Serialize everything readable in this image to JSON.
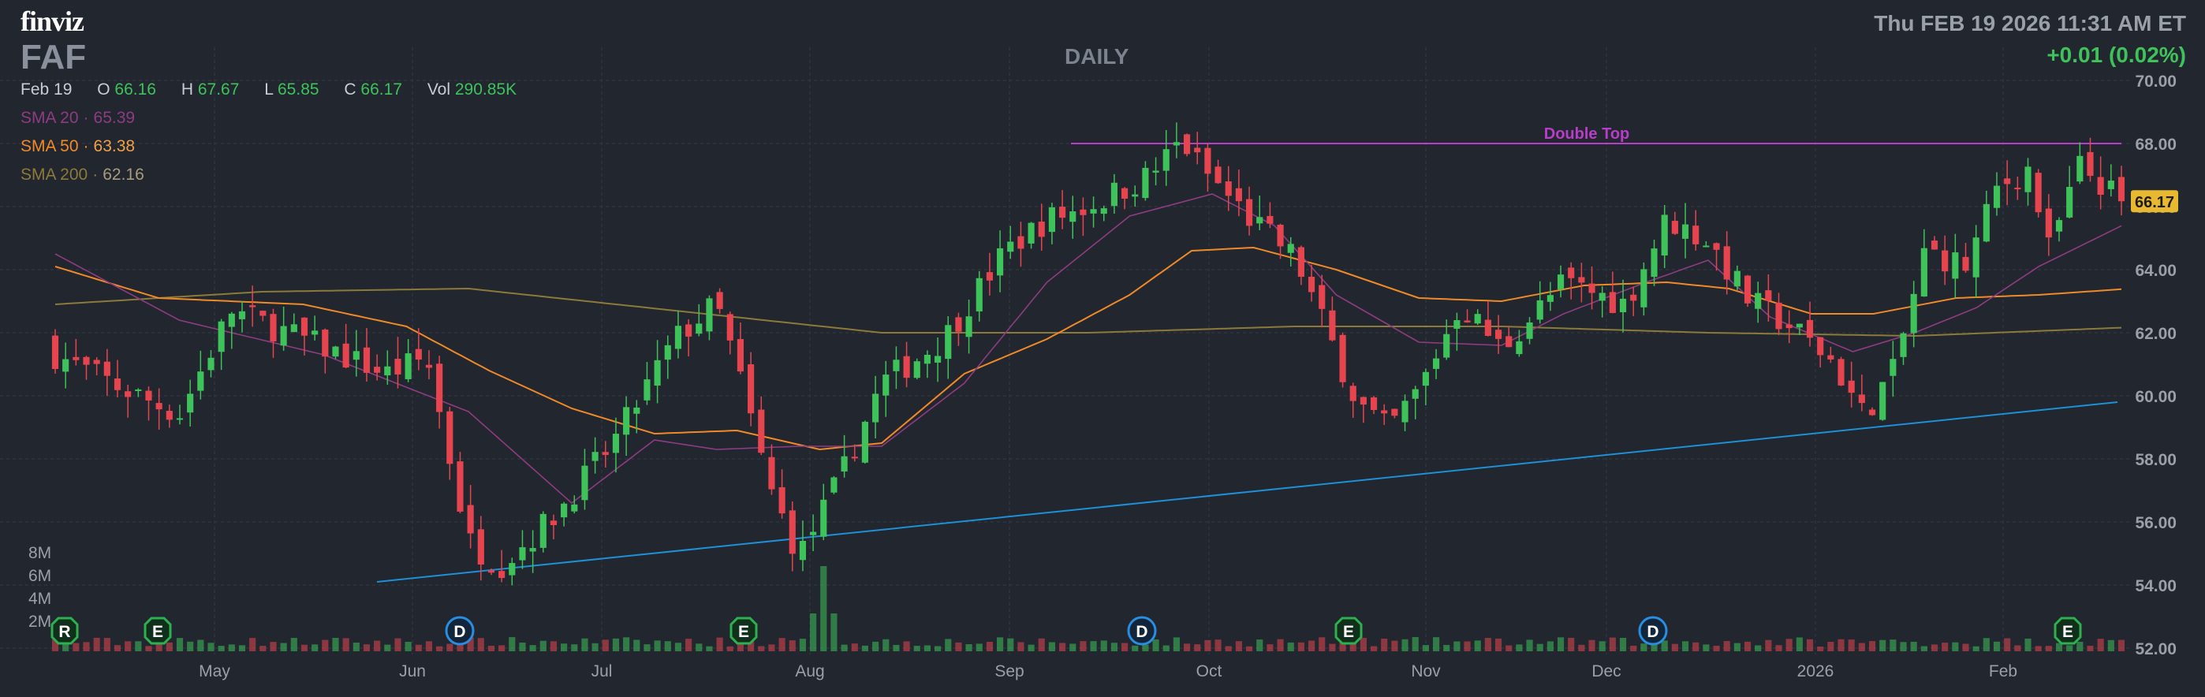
{
  "header": {
    "logo": "finviz",
    "ticker": "FAF",
    "period": "DAILY",
    "datetime": "Thu FEB 19 2026 11:31 AM ET",
    "change": "+0.01 (0.02%)"
  },
  "ohlc": {
    "date": "Feb 19",
    "o_label": "O",
    "o": "66.16",
    "h_label": "H",
    "h": "67.67",
    "l_label": "L",
    "l": "65.85",
    "c_label": "C",
    "c": "66.17",
    "vol_label": "Vol",
    "vol": "290.85K"
  },
  "indicators": {
    "sma20_label": "SMA 20",
    "sma20": "65.39",
    "sma50_label": "SMA 50",
    "sma50": "63.38",
    "sma200_label": "SMA 200",
    "sma200": "62.16",
    "sep": "·"
  },
  "colors": {
    "background": "#22262f",
    "up": "#3ec25a",
    "down": "#e64550",
    "grid": "#343945",
    "sma20": "#8e3c82",
    "sma50": "#f08a28",
    "sma200": "#8c7a3a",
    "trendline": "#1e90d6",
    "double_top": "#b63ec8",
    "last_price_bg": "#e8b830"
  },
  "chart_data": {
    "type": "candlestick",
    "ylim": [
      52,
      70
    ],
    "y_ticks": [
      "70.00",
      "68.00",
      "66.00",
      "64.00",
      "62.00",
      "60.00",
      "58.00",
      "56.00",
      "54.00",
      "52.00"
    ],
    "x_tick_labels": [
      "May",
      "Jun",
      "Jul",
      "Aug",
      "Sep",
      "Oct",
      "Nov",
      "Dec",
      "2026",
      "Feb"
    ],
    "volume_axis_labels": [
      "8M",
      "6M",
      "4M",
      "2M"
    ],
    "last_price": "66.17",
    "annotations": {
      "double_top_label": "Double Top",
      "double_top_level": 68.0,
      "trendline": {
        "from": [
          54.1
        ],
        "to": [
          59.8
        ]
      }
    },
    "event_markers": [
      {
        "label": "R",
        "kind": "rating"
      },
      {
        "label": "E",
        "kind": "earnings"
      },
      {
        "label": "D",
        "kind": "dividend"
      },
      {
        "label": "E",
        "kind": "earnings"
      },
      {
        "label": "D",
        "kind": "dividend"
      },
      {
        "label": "E",
        "kind": "earnings"
      },
      {
        "label": "D",
        "kind": "dividend"
      },
      {
        "label": "E",
        "kind": "earnings"
      }
    ],
    "close_keyframes": [
      {
        "x": 0.0,
        "y": 61.3
      },
      {
        "x": 0.03,
        "y": 60.3
      },
      {
        "x": 0.06,
        "y": 59.4
      },
      {
        "x": 0.085,
        "y": 62.7
      },
      {
        "x": 0.12,
        "y": 61.8
      },
      {
        "x": 0.16,
        "y": 60.7
      },
      {
        "x": 0.18,
        "y": 61.2
      },
      {
        "x": 0.2,
        "y": 55.4
      },
      {
        "x": 0.215,
        "y": 54.6
      },
      {
        "x": 0.24,
        "y": 56.1
      },
      {
        "x": 0.27,
        "y": 58.5
      },
      {
        "x": 0.3,
        "y": 61.8
      },
      {
        "x": 0.32,
        "y": 62.9
      },
      {
        "x": 0.33,
        "y": 60.9
      },
      {
        "x": 0.345,
        "y": 57.2
      },
      {
        "x": 0.36,
        "y": 54.9
      },
      {
        "x": 0.38,
        "y": 57.4
      },
      {
        "x": 0.4,
        "y": 60.4
      },
      {
        "x": 0.43,
        "y": 61.8
      },
      {
        "x": 0.46,
        "y": 64.6
      },
      {
        "x": 0.48,
        "y": 65.6
      },
      {
        "x": 0.5,
        "y": 66.0
      },
      {
        "x": 0.53,
        "y": 67.0
      },
      {
        "x": 0.545,
        "y": 68.1
      },
      {
        "x": 0.555,
        "y": 67.2
      },
      {
        "x": 0.58,
        "y": 65.5
      },
      {
        "x": 0.6,
        "y": 64.4
      },
      {
        "x": 0.615,
        "y": 62.1
      },
      {
        "x": 0.63,
        "y": 59.8
      },
      {
        "x": 0.645,
        "y": 58.9
      },
      {
        "x": 0.66,
        "y": 60.2
      },
      {
        "x": 0.68,
        "y": 62.9
      },
      {
        "x": 0.7,
        "y": 61.5
      },
      {
        "x": 0.73,
        "y": 63.6
      },
      {
        "x": 0.76,
        "y": 62.9
      },
      {
        "x": 0.78,
        "y": 65.6
      },
      {
        "x": 0.8,
        "y": 64.9
      },
      {
        "x": 0.82,
        "y": 63.0
      },
      {
        "x": 0.84,
        "y": 62.2
      },
      {
        "x": 0.86,
        "y": 61.1
      },
      {
        "x": 0.875,
        "y": 59.4
      },
      {
        "x": 0.89,
        "y": 60.8
      },
      {
        "x": 0.905,
        "y": 64.6
      },
      {
        "x": 0.925,
        "y": 64.1
      },
      {
        "x": 0.94,
        "y": 66.6
      },
      {
        "x": 0.955,
        "y": 67.2
      },
      {
        "x": 0.965,
        "y": 64.6
      },
      {
        "x": 0.98,
        "y": 67.3
      },
      {
        "x": 1.0,
        "y": 66.17
      }
    ],
    "sma20_keyframes": [
      {
        "x": 0.0,
        "y": 64.5
      },
      {
        "x": 0.06,
        "y": 62.4
      },
      {
        "x": 0.13,
        "y": 61.3
      },
      {
        "x": 0.2,
        "y": 59.5
      },
      {
        "x": 0.25,
        "y": 56.6
      },
      {
        "x": 0.29,
        "y": 58.6
      },
      {
        "x": 0.32,
        "y": 58.3
      },
      {
        "x": 0.36,
        "y": 58.4
      },
      {
        "x": 0.4,
        "y": 58.4
      },
      {
        "x": 0.44,
        "y": 60.4
      },
      {
        "x": 0.48,
        "y": 63.6
      },
      {
        "x": 0.52,
        "y": 65.7
      },
      {
        "x": 0.56,
        "y": 66.4
      },
      {
        "x": 0.59,
        "y": 65.4
      },
      {
        "x": 0.62,
        "y": 63.2
      },
      {
        "x": 0.66,
        "y": 61.7
      },
      {
        "x": 0.7,
        "y": 61.6
      },
      {
        "x": 0.73,
        "y": 62.6
      },
      {
        "x": 0.77,
        "y": 63.6
      },
      {
        "x": 0.8,
        "y": 64.3
      },
      {
        "x": 0.83,
        "y": 62.5
      },
      {
        "x": 0.87,
        "y": 61.4
      },
      {
        "x": 0.9,
        "y": 62.0
      },
      {
        "x": 0.93,
        "y": 62.8
      },
      {
        "x": 0.96,
        "y": 64.1
      },
      {
        "x": 1.0,
        "y": 65.39
      }
    ],
    "sma50_keyframes": [
      {
        "x": 0.0,
        "y": 64.1
      },
      {
        "x": 0.05,
        "y": 63.1
      },
      {
        "x": 0.12,
        "y": 62.9
      },
      {
        "x": 0.17,
        "y": 62.2
      },
      {
        "x": 0.21,
        "y": 60.8
      },
      {
        "x": 0.25,
        "y": 59.6
      },
      {
        "x": 0.29,
        "y": 58.8
      },
      {
        "x": 0.33,
        "y": 58.9
      },
      {
        "x": 0.37,
        "y": 58.3
      },
      {
        "x": 0.4,
        "y": 58.5
      },
      {
        "x": 0.44,
        "y": 60.7
      },
      {
        "x": 0.48,
        "y": 61.8
      },
      {
        "x": 0.52,
        "y": 63.2
      },
      {
        "x": 0.55,
        "y": 64.6
      },
      {
        "x": 0.58,
        "y": 64.7
      },
      {
        "x": 0.62,
        "y": 64.0
      },
      {
        "x": 0.66,
        "y": 63.1
      },
      {
        "x": 0.7,
        "y": 63.0
      },
      {
        "x": 0.74,
        "y": 63.5
      },
      {
        "x": 0.78,
        "y": 63.6
      },
      {
        "x": 0.81,
        "y": 63.4
      },
      {
        "x": 0.85,
        "y": 62.6
      },
      {
        "x": 0.88,
        "y": 62.6
      },
      {
        "x": 0.92,
        "y": 63.1
      },
      {
        "x": 0.96,
        "y": 63.2
      },
      {
        "x": 1.0,
        "y": 63.38
      }
    ],
    "sma200_keyframes": [
      {
        "x": 0.0,
        "y": 62.9
      },
      {
        "x": 0.1,
        "y": 63.3
      },
      {
        "x": 0.2,
        "y": 63.4
      },
      {
        "x": 0.3,
        "y": 62.7
      },
      {
        "x": 0.4,
        "y": 62.0
      },
      {
        "x": 0.5,
        "y": 62.0
      },
      {
        "x": 0.6,
        "y": 62.2
      },
      {
        "x": 0.7,
        "y": 62.2
      },
      {
        "x": 0.8,
        "y": 62.0
      },
      {
        "x": 0.9,
        "y": 61.9
      },
      {
        "x": 1.0,
        "y": 62.16
      }
    ]
  }
}
